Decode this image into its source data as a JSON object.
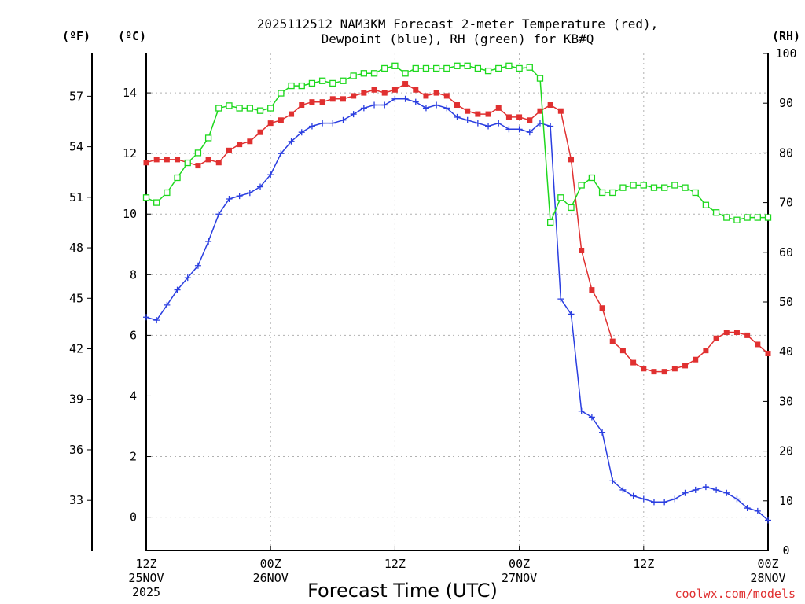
{
  "chart_data": {
    "type": "line",
    "title_line1": "2025112512 NAM3KM Forecast 2-meter Temperature (red),",
    "title_line2": "Dewpoint (blue), RH (green) for KB#Q",
    "xlabel": "Forecast Time (UTC)",
    "credit": "coolwx.com/models",
    "units": {
      "f": "(ºF)",
      "c": "(ºC)",
      "rh": "(RH)"
    },
    "x_range_hours": [
      0,
      60
    ],
    "c_range": [
      -1.1,
      15.3
    ],
    "rh_range": [
      0,
      100
    ],
    "c_ticks": [
      0,
      2,
      4,
      6,
      8,
      10,
      12,
      14
    ],
    "c_tick_labels": [
      "0",
      "2",
      "4",
      "6",
      "8",
      "10",
      "12",
      "14"
    ],
    "f_ticks": [
      33,
      36,
      39,
      42,
      45,
      48,
      51,
      54,
      57
    ],
    "f_tick_labels": [
      "33",
      "36",
      "39",
      "42",
      "45",
      "48",
      "51",
      "54",
      "57"
    ],
    "rh_ticks": [
      0,
      10,
      20,
      30,
      40,
      50,
      60,
      70,
      80,
      90,
      100
    ],
    "rh_tick_labels": [
      "0",
      "10",
      "20",
      "30",
      "40",
      "50",
      "60",
      "70",
      "80",
      "90",
      "100"
    ],
    "x_ticks": [
      {
        "hour": 0,
        "label1": "12Z",
        "label2": "25NOV",
        "label3": "2025"
      },
      {
        "hour": 12,
        "label1": "00Z",
        "label2": "26NOV",
        "label3": ""
      },
      {
        "hour": 24,
        "label1": "12Z",
        "label2": "",
        "label3": ""
      },
      {
        "hour": 36,
        "label1": "00Z",
        "label2": "27NOV",
        "label3": ""
      },
      {
        "hour": 48,
        "label1": "12Z",
        "label2": "",
        "label3": ""
      },
      {
        "hour": 60,
        "label1": "00Z",
        "label2": "28NOV",
        "label3": ""
      }
    ],
    "grid": true,
    "series": [
      {
        "name": "2-meter Temperature",
        "axis": "c",
        "color": "#e03030",
        "marker": "filled-square",
        "x": [
          0,
          1,
          2,
          3,
          4,
          5,
          6,
          7,
          8,
          9,
          10,
          11,
          12,
          13,
          14,
          15,
          16,
          17,
          18,
          19,
          20,
          21,
          22,
          23,
          24,
          25,
          26,
          27,
          28,
          29,
          30,
          31,
          32,
          33,
          34,
          35,
          36,
          37,
          38,
          39,
          40,
          41,
          42,
          43,
          44,
          45,
          46,
          47,
          48,
          49,
          50,
          51,
          52,
          53,
          54,
          55,
          56,
          57,
          58,
          59,
          60
        ],
        "values": [
          11.7,
          11.8,
          11.8,
          11.8,
          11.7,
          11.6,
          11.8,
          11.7,
          12.1,
          12.3,
          12.4,
          12.7,
          13.0,
          13.1,
          13.3,
          13.6,
          13.7,
          13.7,
          13.8,
          13.8,
          13.9,
          14.0,
          14.1,
          14.0,
          14.1,
          14.3,
          14.1,
          13.9,
          14.0,
          13.9,
          13.6,
          13.4,
          13.3,
          13.3,
          13.5,
          13.2,
          13.2,
          13.1,
          13.4,
          13.6,
          13.4,
          11.8,
          8.8,
          7.5,
          6.9,
          5.8,
          5.5,
          5.1,
          4.9,
          4.8,
          4.8,
          4.9,
          5.0,
          5.2,
          5.5,
          5.9,
          6.1,
          6.1,
          6.0,
          5.7,
          5.4
        ]
      },
      {
        "name": "Dewpoint",
        "axis": "c",
        "color": "#2a3ee0",
        "marker": "plus",
        "x": [
          0,
          1,
          2,
          3,
          4,
          5,
          6,
          7,
          8,
          9,
          10,
          11,
          12,
          13,
          14,
          15,
          16,
          17,
          18,
          19,
          20,
          21,
          22,
          23,
          24,
          25,
          26,
          27,
          28,
          29,
          30,
          31,
          32,
          33,
          34,
          35,
          36,
          37,
          38,
          39,
          40,
          41,
          42,
          43,
          44,
          45,
          46,
          47,
          48,
          49,
          50,
          51,
          52,
          53,
          54,
          55,
          56,
          57,
          58,
          59,
          60
        ],
        "values": [
          6.6,
          6.5,
          7.0,
          7.5,
          7.9,
          8.3,
          9.1,
          10.0,
          10.5,
          10.6,
          10.7,
          10.9,
          11.3,
          12.0,
          12.4,
          12.7,
          12.9,
          13.0,
          13.0,
          13.1,
          13.3,
          13.5,
          13.6,
          13.6,
          13.8,
          13.8,
          13.7,
          13.5,
          13.6,
          13.5,
          13.2,
          13.1,
          13.0,
          12.9,
          13.0,
          12.8,
          12.8,
          12.7,
          13.0,
          12.9,
          7.2,
          6.7,
          3.5,
          3.3,
          2.8,
          1.2,
          0.9,
          0.7,
          0.6,
          0.5,
          0.5,
          0.6,
          0.8,
          0.9,
          1.0,
          0.9,
          0.8,
          0.6,
          0.3,
          0.2,
          -0.1
        ]
      },
      {
        "name": "RH",
        "axis": "rh",
        "color": "#1ed81e",
        "marker": "open-square",
        "x": [
          0,
          1,
          2,
          3,
          4,
          5,
          6,
          7,
          8,
          9,
          10,
          11,
          12,
          13,
          14,
          15,
          16,
          17,
          18,
          19,
          20,
          21,
          22,
          23,
          24,
          25,
          26,
          27,
          28,
          29,
          30,
          31,
          32,
          33,
          34,
          35,
          36,
          37,
          38,
          39,
          40,
          41,
          42,
          43,
          44,
          45,
          46,
          47,
          48,
          49,
          50,
          51,
          52,
          53,
          54,
          55,
          56,
          57,
          58,
          59,
          60
        ],
        "values": [
          71,
          70,
          72,
          75,
          78,
          80,
          83,
          89,
          89.5,
          89,
          89,
          88.5,
          89,
          92,
          93.5,
          93.5,
          94,
          94.5,
          94,
          94.5,
          95.5,
          96,
          96,
          97,
          97.5,
          96,
          97,
          97,
          97,
          97,
          97.5,
          97.5,
          97,
          96.5,
          97,
          97.5,
          97,
          97.2,
          95,
          66,
          71,
          69,
          73.5,
          75,
          72,
          72,
          73,
          73.5,
          73.5,
          73,
          73,
          73.5,
          73,
          72,
          69.5,
          68,
          67,
          66.5,
          67,
          67,
          67
        ]
      }
    ]
  }
}
